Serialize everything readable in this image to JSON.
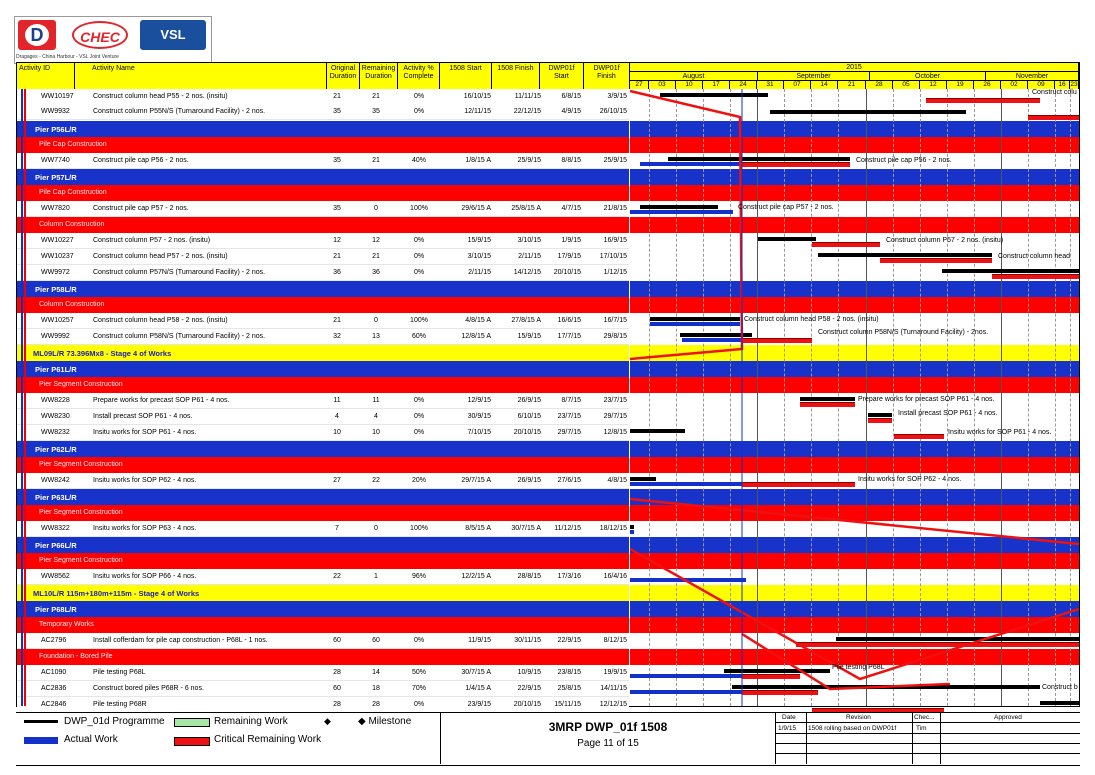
{
  "header_columns": {
    "activity_id": "Activity ID",
    "activity_name": "Activity Name",
    "orig_dur": [
      "Original",
      "Duration"
    ],
    "rem_dur": [
      "Remaining",
      "Duration"
    ],
    "pct": [
      "Activity %",
      "Complete"
    ],
    "start": "1508 Start",
    "finish": "1508 Finish",
    "dwp_start": [
      "DWP01f",
      "Start"
    ],
    "dwp_finish": [
      "DWP01f",
      "Finish"
    ]
  },
  "timeline": {
    "year": "2015",
    "months": [
      "August",
      "September",
      "October",
      "November"
    ],
    "days": [
      "27",
      "03",
      "10",
      "17",
      "24",
      "31",
      "07",
      "14",
      "21",
      "28",
      "05",
      "12",
      "19",
      "26",
      "02",
      "09",
      "16",
      "23"
    ]
  },
  "logo": {
    "d": "D",
    "chec": "CHEC",
    "vsl": "VSL",
    "subtitle": "Dragages - China Harbour - VSL Joint Venture"
  },
  "rows": [
    {
      "type": "act",
      "id": "WW10197",
      "name": "Construct column head P55 - 2 nos. (insitu)",
      "od": "21",
      "rd": "21",
      "pct": "0%",
      "start": "16/10/15",
      "finish": "11/11/15",
      "ds": "6/8/15",
      "df": "3/9/15"
    },
    {
      "type": "act",
      "id": "WW9932",
      "name": "Construct column P55N/S (Turnaround Facility) - 2 nos.",
      "od": "35",
      "rd": "35",
      "pct": "0%",
      "start": "12/11/15",
      "finish": "22/12/15",
      "ds": "4/9/15",
      "df": "26/10/15"
    },
    {
      "type": "blue",
      "label": "Pier P56L/R"
    },
    {
      "type": "red",
      "label": "Pile Cap Construction"
    },
    {
      "type": "act",
      "id": "WW7740",
      "name": "Construct pile cap P56 - 2 nos.",
      "od": "35",
      "rd": "21",
      "pct": "40%",
      "start": "1/8/15 A",
      "finish": "25/9/15",
      "ds": "8/8/15",
      "df": "25/9/15"
    },
    {
      "type": "blue",
      "label": "Pier P57L/R"
    },
    {
      "type": "red",
      "label": "Pile Cap Construction"
    },
    {
      "type": "act",
      "id": "WW7820",
      "name": "Construct pile cap P57 - 2 nos.",
      "od": "35",
      "rd": "0",
      "pct": "100%",
      "start": "29/6/15 A",
      "finish": "25/8/15 A",
      "ds": "4/7/15",
      "df": "21/8/15"
    },
    {
      "type": "red",
      "label": "Column Construction"
    },
    {
      "type": "act",
      "id": "WW10227",
      "name": "Construct column P57 - 2 nos. (insitu)",
      "od": "12",
      "rd": "12",
      "pct": "0%",
      "start": "15/9/15",
      "finish": "3/10/15",
      "ds": "1/9/15",
      "df": "16/9/15"
    },
    {
      "type": "act",
      "id": "WW10237",
      "name": "Construct column head P57 - 2 nos. (insitu)",
      "od": "21",
      "rd": "21",
      "pct": "0%",
      "start": "3/10/15",
      "finish": "2/11/15",
      "ds": "17/9/15",
      "df": "17/10/15"
    },
    {
      "type": "act",
      "id": "WW9972",
      "name": "Construct column P57N/S (Turnaround Facility) - 2 nos.",
      "od": "36",
      "rd": "36",
      "pct": "0%",
      "start": "2/11/15",
      "finish": "14/12/15",
      "ds": "20/10/15",
      "df": "1/12/15"
    },
    {
      "type": "blue",
      "label": "Pier P58L/R"
    },
    {
      "type": "red",
      "label": "Column Construction"
    },
    {
      "type": "act",
      "id": "WW10257",
      "name": "Construct column head P58 - 2 nos. (insitu)",
      "od": "21",
      "rd": "0",
      "pct": "100%",
      "start": "4/8/15 A",
      "finish": "27/8/15 A",
      "ds": "16/6/15",
      "df": "16/7/15"
    },
    {
      "type": "act",
      "id": "WW9992",
      "name": "Construct column P58N/S (Turnaround Facility) - 2 nos.",
      "od": "32",
      "rd": "13",
      "pct": "60%",
      "start": "12/8/15 A",
      "finish": "15/9/15",
      "ds": "17/7/15",
      "df": "29/8/15"
    },
    {
      "type": "yellow",
      "label": "ML09L/R 73.396Mx8 - Stage 4 of Works"
    },
    {
      "type": "blue",
      "label": "Pier P61L/R"
    },
    {
      "type": "red",
      "label": "Pier Segment Construction"
    },
    {
      "type": "act",
      "id": "WW8228",
      "name": "Prepare works for precast SOP P61 - 4 nos.",
      "od": "11",
      "rd": "11",
      "pct": "0%",
      "start": "12/9/15",
      "finish": "26/9/15",
      "ds": "8/7/15",
      "df": "23/7/15"
    },
    {
      "type": "act",
      "id": "WW8230",
      "name": "Install precast SOP P61 - 4 nos.",
      "od": "4",
      "rd": "4",
      "pct": "0%",
      "start": "30/9/15",
      "finish": "6/10/15",
      "ds": "23/7/15",
      "df": "29/7/15"
    },
    {
      "type": "act",
      "id": "WW8232",
      "name": "Insitu works for SOP P61 - 4 nos.",
      "od": "10",
      "rd": "10",
      "pct": "0%",
      "start": "7/10/15",
      "finish": "20/10/15",
      "ds": "29/7/15",
      "df": "12/8/15"
    },
    {
      "type": "blue",
      "label": "Pier P62L/R"
    },
    {
      "type": "red",
      "label": "Pier Segment Construction"
    },
    {
      "type": "act",
      "id": "WW8242",
      "name": "Insitu works for SOP P62 - 4 nos.",
      "od": "27",
      "rd": "22",
      "pct": "20%",
      "start": "29/7/15 A",
      "finish": "26/9/15",
      "ds": "27/6/15",
      "df": "4/8/15"
    },
    {
      "type": "blue",
      "label": "Pier P63L/R"
    },
    {
      "type": "red",
      "label": "Pier Segment Construction"
    },
    {
      "type": "act",
      "id": "WW8322",
      "name": "Insitu works for SOP P63 - 4 nos.",
      "od": "7",
      "rd": "0",
      "pct": "100%",
      "start": "8/5/15 A",
      "finish": "30/7/15 A",
      "ds": "11/12/15",
      "df": "18/12/15"
    },
    {
      "type": "blue",
      "label": "Pier P66L/R"
    },
    {
      "type": "red",
      "label": "Pier Segment Construction"
    },
    {
      "type": "act",
      "id": "WW8562",
      "name": "Insitu works for SOP P66 - 4 nos.",
      "od": "22",
      "rd": "1",
      "pct": "96%",
      "start": "12/2/15 A",
      "finish": "28/8/15",
      "ds": "17/3/16",
      "df": "16/4/16"
    },
    {
      "type": "yellow",
      "label": "ML10L/R 115m+180m+115m - Stage 4 of Works"
    },
    {
      "type": "blue",
      "label": "Pier P68L/R"
    },
    {
      "type": "red",
      "label": "Temporary Works"
    },
    {
      "type": "act",
      "id": "AC2796",
      "name": "Install cofferdam for pile cap construction - P68L - 1 nos.",
      "od": "60",
      "rd": "60",
      "pct": "0%",
      "start": "11/9/15",
      "finish": "30/11/15",
      "ds": "22/9/15",
      "df": "8/12/15"
    },
    {
      "type": "red",
      "label": "Foundation - Bored Pile"
    },
    {
      "type": "act",
      "id": "AC1090",
      "name": "Pile testing P68L",
      "od": "28",
      "rd": "14",
      "pct": "50%",
      "start": "30/7/15 A",
      "finish": "10/9/15",
      "ds": "23/8/15",
      "df": "19/9/15"
    },
    {
      "type": "act",
      "id": "AC2836",
      "name": "Construct bored piles P68R - 6 nos.",
      "od": "60",
      "rd": "18",
      "pct": "70%",
      "start": "1/4/15 A",
      "finish": "22/9/15",
      "ds": "25/8/15",
      "df": "14/11/15"
    },
    {
      "type": "act",
      "id": "AC2846",
      "name": "Pile testing P68R",
      "od": "28",
      "rd": "28",
      "pct": "0%",
      "start": "23/9/15",
      "finish": "20/10/15",
      "ds": "15/11/15",
      "df": "12/12/15"
    }
  ],
  "gantt_labels": {
    "l0": "Construct colu",
    "l4": "Construct pile cap P56 - 2 nos.",
    "l7": "Construct pile cap P57 - 2 nos.",
    "l9": "Construct column P57 - 2 nos. (insitu)",
    "l10": "Construct column head",
    "l14": "Construct column head P58 - 2 nos. (insitu)",
    "l15": "Construct column P58N/S (Turnaround Facility) - 2nos.",
    "l19": "Prepare works for precast SOP P61 - 4 nos.",
    "l20": "Install precast SOP P61 - 4 nos.",
    "l21": "Insitu works for SOP P61 - 4 nos.",
    "l24": "Insitu works for SOP P62 - 4 nos.",
    "l36": "Pile testing P68L",
    "l37": "Construct b"
  },
  "legend": {
    "dwp": "DWP_01d Programme",
    "actual": "Actual Work",
    "remaining": "Remaining Work",
    "critical": "Critical Remaining Work",
    "milestone_a": "◆",
    "milestone_b": "◆ Milestone"
  },
  "title_block": {
    "title": "3MRP DWP_01f 1508",
    "page": "Page 11 of 15"
  },
  "revision": {
    "headers": [
      "Date",
      "Revision",
      "Chec...",
      "Approved"
    ],
    "row": [
      "1/9/15",
      "1508 rolling based on DWP01f",
      "Tim",
      ""
    ]
  },
  "colors": {
    "blue": "#1733c9",
    "red": "#ff0000",
    "yellow": "#ffff00",
    "green": "#a8e6a8"
  }
}
